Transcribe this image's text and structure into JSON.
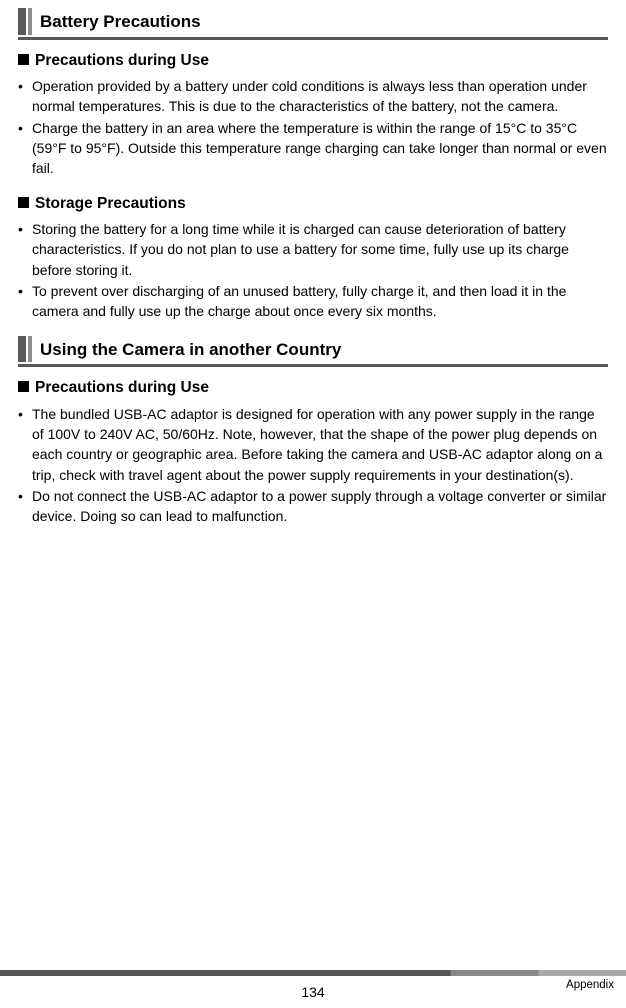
{
  "sections": {
    "battery": {
      "title": "Battery Precautions",
      "use_heading": "Precautions during Use",
      "use_items": [
        "Operation provided by a battery under cold conditions is always less than operation under normal temperatures. This is due to the characteristics of the battery, not the camera.",
        "Charge the battery in an area where the temperature is within the range of 15°C to 35°C (59°F to 95°F). Outside this temperature range charging can take longer than normal or even fail."
      ],
      "storage_heading": "Storage Precautions",
      "storage_items": [
        "Storing the battery for a long time while it is charged can cause deterioration of battery characteristics. If you do not plan to use a battery for some time, fully use up its charge before storing it.",
        "To prevent over discharging of an unused battery, fully charge it, and then load it in the camera and fully use up the charge about once every six months."
      ]
    },
    "country": {
      "title": "Using the Camera in another Country",
      "use_heading": "Precautions during Use",
      "use_items": [
        "The bundled USB-AC adaptor is designed for operation with any power supply in the range of 100V to 240V AC, 50/60Hz. Note, however, that the shape of the power plug depends on each country or geographic area. Before taking the camera and USB-AC adaptor along on a trip, check with travel agent about the power supply requirements in your destination(s).",
        "Do not connect the USB-AC adaptor to a power supply through a voltage converter or similar device. Doing so can lead to malfunction."
      ]
    }
  },
  "footer": {
    "page_number": "134",
    "section_label": "Appendix"
  }
}
